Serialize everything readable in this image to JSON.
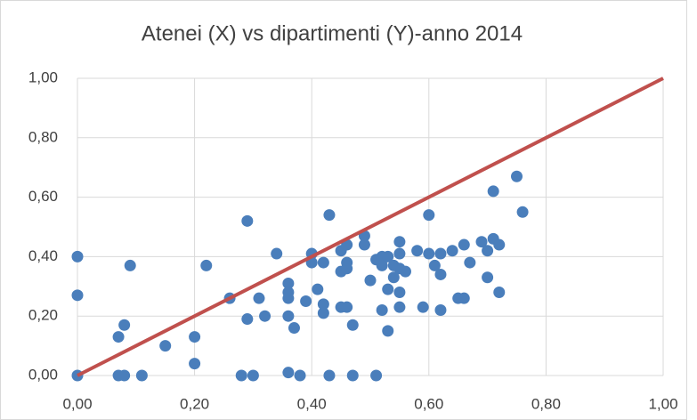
{
  "chart_data": {
    "type": "scatter",
    "title": "Atenei (X) vs dipartimenti (Y)-anno 2014",
    "xlim": [
      0,
      1
    ],
    "ylim": [
      0,
      1
    ],
    "xticks": [
      {
        "value": 0,
        "label": "0,00"
      },
      {
        "value": 0.2,
        "label": "0,20"
      },
      {
        "value": 0.4,
        "label": "0,40"
      },
      {
        "value": 0.6,
        "label": "0,60"
      },
      {
        "value": 0.8,
        "label": "0,80"
      },
      {
        "value": 1,
        "label": "1,00"
      }
    ],
    "yticks": [
      {
        "value": 0,
        "label": "0,00"
      },
      {
        "value": 0.2,
        "label": "0,20"
      },
      {
        "value": 0.4,
        "label": "0,40"
      },
      {
        "value": 0.6,
        "label": "0,60"
      },
      {
        "value": 0.8,
        "label": "0,80"
      },
      {
        "value": 1,
        "label": "1,00"
      }
    ],
    "grid": true,
    "series": [
      {
        "mode": "markers",
        "color": "#4a7ebb",
        "x": [
          0,
          0,
          0,
          0.07,
          0.08,
          0.09,
          0.07,
          0.08,
          0.11,
          0.15,
          0.2,
          0.2,
          0.22,
          0.26,
          0.28,
          0.3,
          0.29,
          0.29,
          0.31,
          0.32,
          0.34,
          0.36,
          0.36,
          0.36,
          0.36,
          0.37,
          0.36,
          0.38,
          0.39,
          0.4,
          0.4,
          0.41,
          0.42,
          0.42,
          0.42,
          0.43,
          0.43,
          0.45,
          0.46,
          0.45,
          0.45,
          0.46,
          0.46,
          0.46,
          0.47,
          0.47,
          0.49,
          0.49,
          0.5,
          0.51,
          0.52,
          0.52,
          0.52,
          0.52,
          0.53,
          0.53,
          0.53,
          0.54,
          0.54,
          0.55,
          0.55,
          0.55,
          0.55,
          0.55,
          0.56,
          0.51,
          0.58,
          0.59,
          0.6,
          0.6,
          0.61,
          0.62,
          0.62,
          0.62,
          0.64,
          0.65,
          0.66,
          0.66,
          0.67,
          0.69,
          0.7,
          0.7,
          0.71,
          0.72,
          0.71,
          0.72,
          0.75,
          0.76
        ],
        "y": [
          0.4,
          0.27,
          0,
          0.13,
          0.17,
          0.37,
          0,
          0,
          0,
          0.1,
          0.04,
          0.13,
          0.37,
          0.26,
          0,
          0,
          0.52,
          0.19,
          0.26,
          0.2,
          0.41,
          0.31,
          0.28,
          0.26,
          0.2,
          0.16,
          0.01,
          0,
          0.25,
          0.41,
          0.38,
          0.29,
          0.21,
          0.24,
          0.38,
          0.54,
          0,
          0.23,
          0.23,
          0.35,
          0.42,
          0.44,
          0.36,
          0.38,
          0.17,
          0,
          0.47,
          0.44,
          0.32,
          0.39,
          0.4,
          0.37,
          0.22,
          0.39,
          0.4,
          0.29,
          0.15,
          0.37,
          0.33,
          0.41,
          0.45,
          0.36,
          0.28,
          0.23,
          0.35,
          0,
          0.42,
          0.23,
          0.54,
          0.41,
          0.37,
          0.41,
          0.34,
          0.22,
          0.42,
          0.26,
          0.26,
          0.44,
          0.38,
          0.45,
          0.33,
          0.42,
          0.46,
          0.44,
          0.62,
          0.28,
          0.67,
          0.55
        ]
      },
      {
        "mode": "lines",
        "color": "#c0504d",
        "x": [
          0,
          1
        ],
        "y": [
          0,
          1
        ]
      }
    ]
  }
}
